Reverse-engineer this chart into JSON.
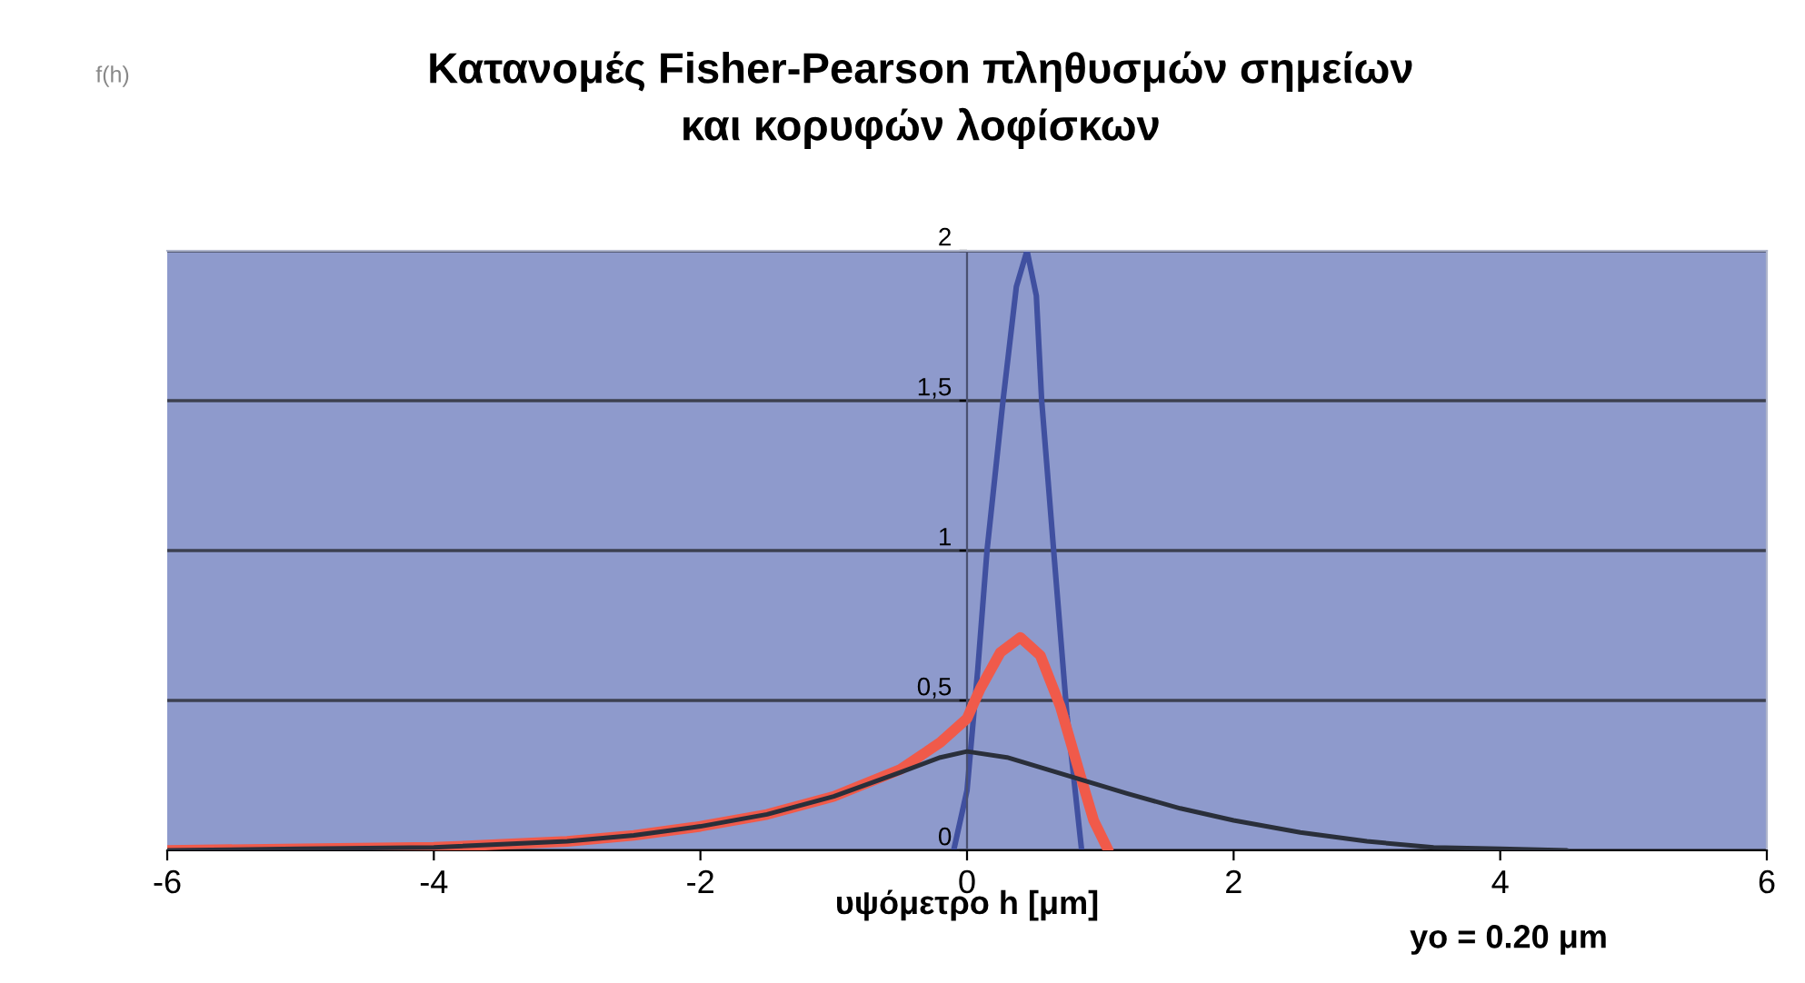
{
  "chart_data": {
    "type": "line",
    "title": "Κατανομές Fisher-Pearson πληθυσμών σημείων\nκαι κορυφών λοφίσκων",
    "xlabel": "υψόμετρο h [μm]",
    "annotations": [
      "f(h)",
      "yo = 0.20 μm"
    ],
    "xlim": [
      -6,
      6
    ],
    "xticks": [
      -6,
      -4,
      -2,
      0,
      2,
      4,
      6
    ],
    "ylim": [
      0,
      2
    ],
    "yticks": [
      0,
      {
        "value": 0.5,
        "label": "0,5"
      },
      1,
      {
        "value": 1.5,
        "label": "1,5"
      },
      2
    ],
    "grid": "y",
    "legend": false,
    "marker": "none",
    "line_style": "solid",
    "series": [
      {
        "color": "#2a2f3a",
        "x": [
          -6,
          -5,
          -4,
          -3,
          -2.5,
          -2,
          -1.5,
          -1,
          -0.5,
          -0.2,
          0,
          0.3,
          0.6,
          0.9,
          1.2,
          1.6,
          2,
          2.5,
          3,
          3.5,
          4,
          4.5
        ],
        "values": [
          0,
          0.005,
          0.01,
          0.03,
          0.05,
          0.08,
          0.12,
          0.18,
          0.26,
          0.31,
          0.33,
          0.31,
          0.27,
          0.23,
          0.19,
          0.14,
          0.1,
          0.06,
          0.03,
          0.01,
          0.005,
          0
        ]
      },
      {
        "color": "#f05a4a",
        "x": [
          -6,
          -5,
          -4,
          -3,
          -2.5,
          -2,
          -1.5,
          -1,
          -0.5,
          -0.2,
          0,
          0.1,
          0.25,
          0.4,
          0.55,
          0.7,
          0.85,
          0.95,
          1.06
        ],
        "values": [
          0,
          0.005,
          0.01,
          0.03,
          0.05,
          0.08,
          0.12,
          0.18,
          0.27,
          0.36,
          0.44,
          0.54,
          0.66,
          0.71,
          0.65,
          0.48,
          0.25,
          0.1,
          0
        ]
      },
      {
        "color": "#4050a0",
        "x": [
          -0.1,
          0,
          0.08,
          0.15,
          0.27,
          0.37,
          0.45,
          0.52,
          0.56,
          0.65,
          0.75,
          0.86
        ],
        "values": [
          0,
          0.2,
          0.6,
          1,
          1.5,
          1.88,
          2,
          1.85,
          1.5,
          1,
          0.45,
          0
        ]
      }
    ]
  }
}
